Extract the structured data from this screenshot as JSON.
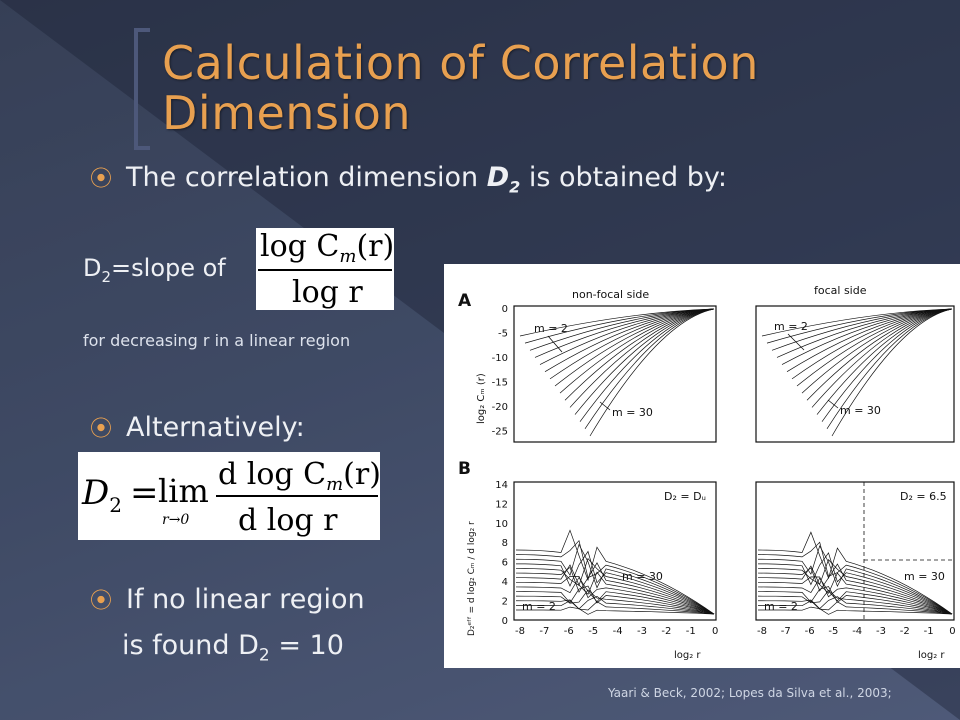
{
  "title": "Calculation of Correlation Dimension",
  "bullets": {
    "b1_pre": "The correlation dimension ",
    "b1_sym": "D",
    "b1_sub": "2",
    "b1_post": " is obtained by:",
    "b2": "Alternatively:",
    "b3_l1": "If no linear region",
    "b3_l2_pre": "is found D",
    "b3_l2_sub": "2",
    "b3_l2_post": " = 10"
  },
  "slope_label": {
    "pre": "D",
    "sub": "2",
    "post": "=slope of"
  },
  "note": "for decreasing r in a linear region",
  "formula1": {
    "num": "log C",
    "num_sub": "m",
    "num_arg": "(r)",
    "den": "log r"
  },
  "formula2": {
    "lhs": "D",
    "lhs_sub": "2",
    "eq": "=",
    "lim": "lim",
    "lim_sub": "r→0",
    "num": "d log C",
    "num_sub": "m",
    "num_arg": "(r)",
    "den": "d log r"
  },
  "figure": {
    "panel_a": "A",
    "panel_b": "B",
    "title_left": "non-focal side",
    "title_right": "focal side",
    "m_low": "m = 2",
    "m_high": "m = 30",
    "d2_left": "D₂ = Dᵤ",
    "d2_right": "D₂ = 6.5",
    "ylabel_a": "log₂ Cₘ (r)",
    "ylabel_b": "D₂ᵉᶠᶠ = d log₂ Cₘ / d log₂ r",
    "xlabel": "log₂ r",
    "ticks_a_y": [
      "0",
      "-5",
      "-10",
      "-15",
      "-20",
      "-25"
    ],
    "ticks_b_y": [
      "14",
      "12",
      "10",
      "8",
      "6",
      "4",
      "2",
      "0"
    ],
    "ticks_x": [
      "-8",
      "-7",
      "-6",
      "-5",
      "-4",
      "-3",
      "-2",
      "-1",
      "0"
    ]
  },
  "citation": "Yaari & Beck, 2002; Lopes da Silva et al., 2003;",
  "colors": {
    "accent": "#e8a050",
    "bg_dark": "#2a3247",
    "bg_light": "#4a5574"
  }
}
